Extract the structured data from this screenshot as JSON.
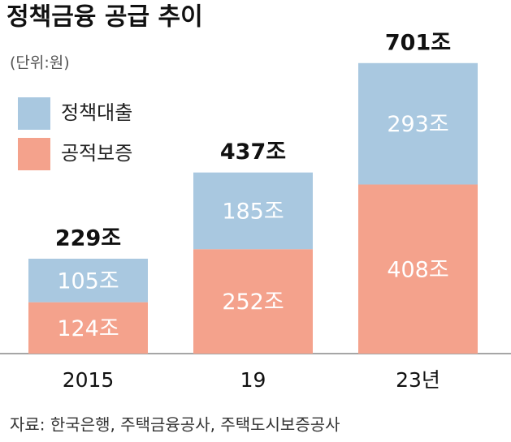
{
  "chart_data": {
    "type": "stacked_bar",
    "title": "정책금융 공급 추이",
    "subtitle": "(단위:원)",
    "categories": [
      "2015",
      "19",
      "23년"
    ],
    "series": [
      {
        "name": "공적보증",
        "color": "#f4a28c",
        "values": [
          124,
          252,
          408
        ],
        "value_labels": [
          "124조",
          "252조",
          "408조"
        ]
      },
      {
        "name": "정책대출",
        "color": "#a9c8e0",
        "values": [
          105,
          185,
          293
        ],
        "value_labels": [
          "105조",
          "185조",
          "293조"
        ]
      }
    ],
    "totals": {
      "values": [
        229,
        437,
        701
      ],
      "value_labels": [
        "229조",
        "437조",
        "701조"
      ]
    },
    "source": "자료: 한국은행, 주택금융공사, 주택도시보증공사"
  }
}
